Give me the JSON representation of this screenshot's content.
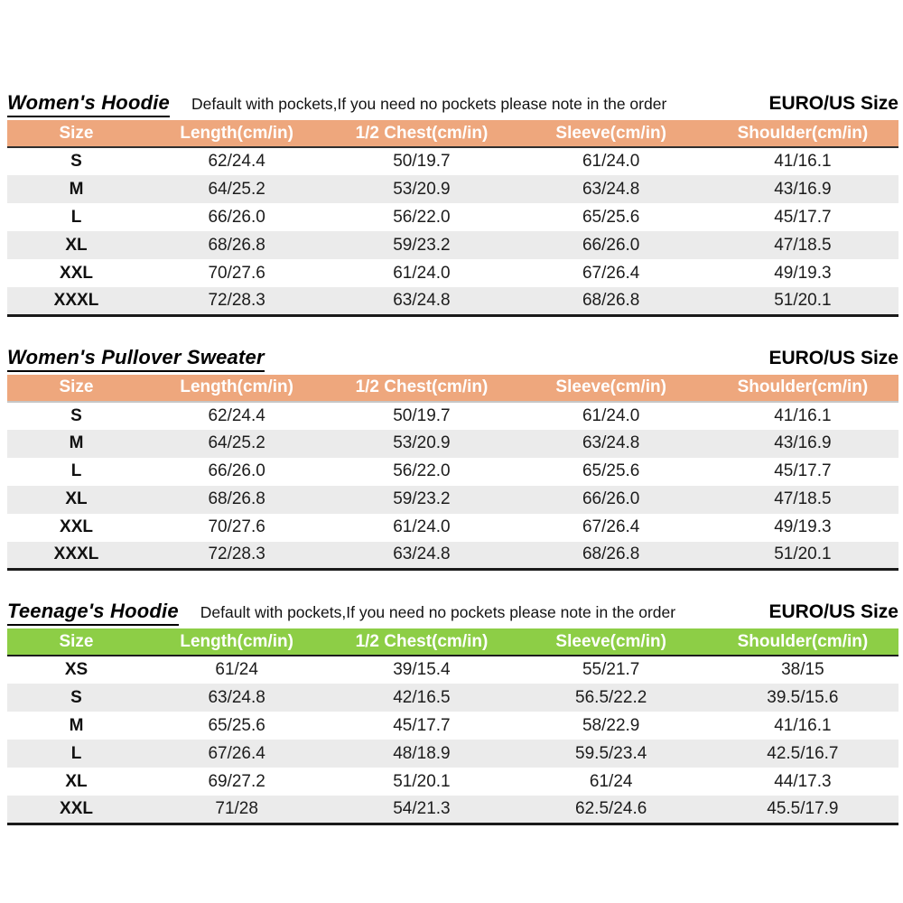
{
  "colors": {
    "page_bg": "#ffffff",
    "row_stripe": "#EBEBEB",
    "table_bottom_border": "#1a1a1a",
    "body_text": "#1a1a1a"
  },
  "tables": [
    {
      "id": "womens-hoodie",
      "title": "Women's Hoodie",
      "note": "Default with pockets,If you need no pockets please note in the order",
      "size_standard_label": "EURO/US Size",
      "theme": {
        "header_bg": "#EEA77D",
        "header_text": "#ffffff",
        "header_divider": "#2e2e2e"
      },
      "columns": [
        "Size",
        "Length(cm/in)",
        "1/2 Chest(cm/in)",
        "Sleeve(cm/in)",
        "Shoulder(cm/in)"
      ],
      "rows": [
        [
          "S",
          "62/24.4",
          "50/19.7",
          "61/24.0",
          "41/16.1"
        ],
        [
          "M",
          "64/25.2",
          "53/20.9",
          "63/24.8",
          "43/16.9"
        ],
        [
          "L",
          "66/26.0",
          "56/22.0",
          "65/25.6",
          "45/17.7"
        ],
        [
          "XL",
          "68/26.8",
          "59/23.2",
          "66/26.0",
          "47/18.5"
        ],
        [
          "XXL",
          "70/27.6",
          "61/24.0",
          "67/26.4",
          "49/19.3"
        ],
        [
          "XXXL",
          "72/28.3",
          "63/24.8",
          "68/26.8",
          "51/20.1"
        ]
      ]
    },
    {
      "id": "womens-pullover-sweater",
      "title": "Women's Pullover Sweater",
      "note": null,
      "size_standard_label": "EURO/US Size",
      "theme": {
        "header_bg": "#EEA77D",
        "header_text": "#ffffff",
        "header_divider": "#c6c6c6"
      },
      "columns": [
        "Size",
        "Length(cm/in)",
        "1/2 Chest(cm/in)",
        "Sleeve(cm/in)",
        "Shoulder(cm/in)"
      ],
      "rows": [
        [
          "S",
          "62/24.4",
          "50/19.7",
          "61/24.0",
          "41/16.1"
        ],
        [
          "M",
          "64/25.2",
          "53/20.9",
          "63/24.8",
          "43/16.9"
        ],
        [
          "L",
          "66/26.0",
          "56/22.0",
          "65/25.6",
          "45/17.7"
        ],
        [
          "XL",
          "68/26.8",
          "59/23.2",
          "66/26.0",
          "47/18.5"
        ],
        [
          "XXL",
          "70/27.6",
          "61/24.0",
          "67/26.4",
          "49/19.3"
        ],
        [
          "XXXL",
          "72/28.3",
          "63/24.8",
          "68/26.8",
          "51/20.1"
        ]
      ]
    },
    {
      "id": "teenages-hoodie",
      "title": "Teenage's Hoodie",
      "note": "Default with pockets,If you need no pockets please note in the order",
      "size_standard_label": "EURO/US Size",
      "theme": {
        "header_bg": "#8DCE46",
        "header_text": "#ffffff",
        "header_divider": "#1d1d1d"
      },
      "columns": [
        "Size",
        "Length(cm/in)",
        "1/2 Chest(cm/in)",
        "Sleeve(cm/in)",
        "Shoulder(cm/in)"
      ],
      "rows": [
        [
          "XS",
          "61/24",
          "39/15.4",
          "55/21.7",
          "38/15"
        ],
        [
          "S",
          "63/24.8",
          "42/16.5",
          "56.5/22.2",
          "39.5/15.6"
        ],
        [
          "M",
          "65/25.6",
          "45/17.7",
          "58/22.9",
          "41/16.1"
        ],
        [
          "L",
          "67/26.4",
          "48/18.9",
          "59.5/23.4",
          "42.5/16.7"
        ],
        [
          "XL",
          "69/27.2",
          "51/20.1",
          "61/24",
          "44/17.3"
        ],
        [
          "XXL",
          "71/28",
          "54/21.3",
          "62.5/24.6",
          "45.5/17.9"
        ]
      ]
    }
  ]
}
